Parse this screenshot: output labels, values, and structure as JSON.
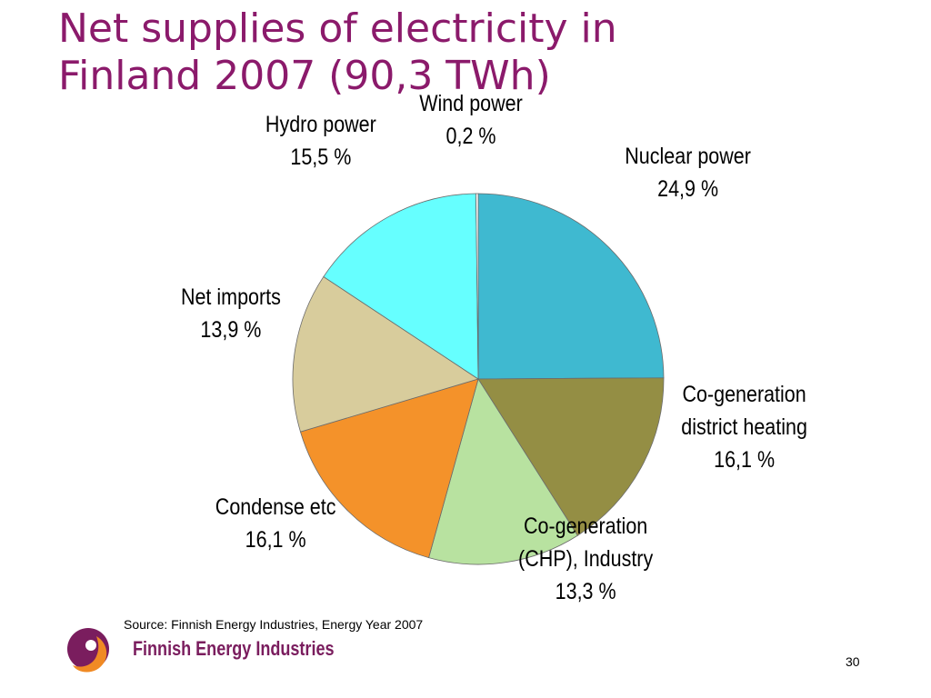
{
  "title_lines": [
    "Net supplies of electricity in",
    "Finland 2007 (90,3 TWh)"
  ],
  "chart_data": {
    "type": "pie",
    "title": "Net supplies of electricity in Finland 2007 (90,3 TWh)",
    "unit": "%",
    "slices": [
      {
        "name": "Nuclear power",
        "label_lines": [
          "Nuclear power"
        ],
        "value": 24.9,
        "value_label": "24,9 %",
        "color": "#3fb9d0"
      },
      {
        "name": "Co-generation district heating",
        "label_lines": [
          "Co-generation",
          "district heating"
        ],
        "value": 16.1,
        "value_label": "16,1 %",
        "color": "#948e44"
      },
      {
        "name": "Co-generation (CHP), Industry",
        "label_lines": [
          "Co-generation",
          "(CHP), Industry"
        ],
        "value": 13.3,
        "value_label": "13,3 %",
        "color": "#b8e2a0"
      },
      {
        "name": "Condense etc",
        "label_lines": [
          "Condense etc"
        ],
        "value": 16.1,
        "value_label": "16,1 %",
        "color": "#f4922a"
      },
      {
        "name": "Net imports",
        "label_lines": [
          "Net imports"
        ],
        "value": 13.9,
        "value_label": "13,9 %",
        "color": "#d8cc9c"
      },
      {
        "name": "Hydro power",
        "label_lines": [
          "Hydro power"
        ],
        "value": 15.5,
        "value_label": "15,5 %",
        "color": "#66ffff"
      },
      {
        "name": "Wind power",
        "label_lines": [
          "Wind power"
        ],
        "value": 0.2,
        "value_label": "0,2 %",
        "color": "#ffffff"
      }
    ]
  },
  "source": "Source: Finnish Energy Industries, Energy Year 2007",
  "brand": "Finnish Energy Industries",
  "page_number": "30",
  "colors": {
    "title": "#8b1a6b",
    "logo_purple": "#7a1d5e",
    "logo_orange": "#f08a24"
  }
}
